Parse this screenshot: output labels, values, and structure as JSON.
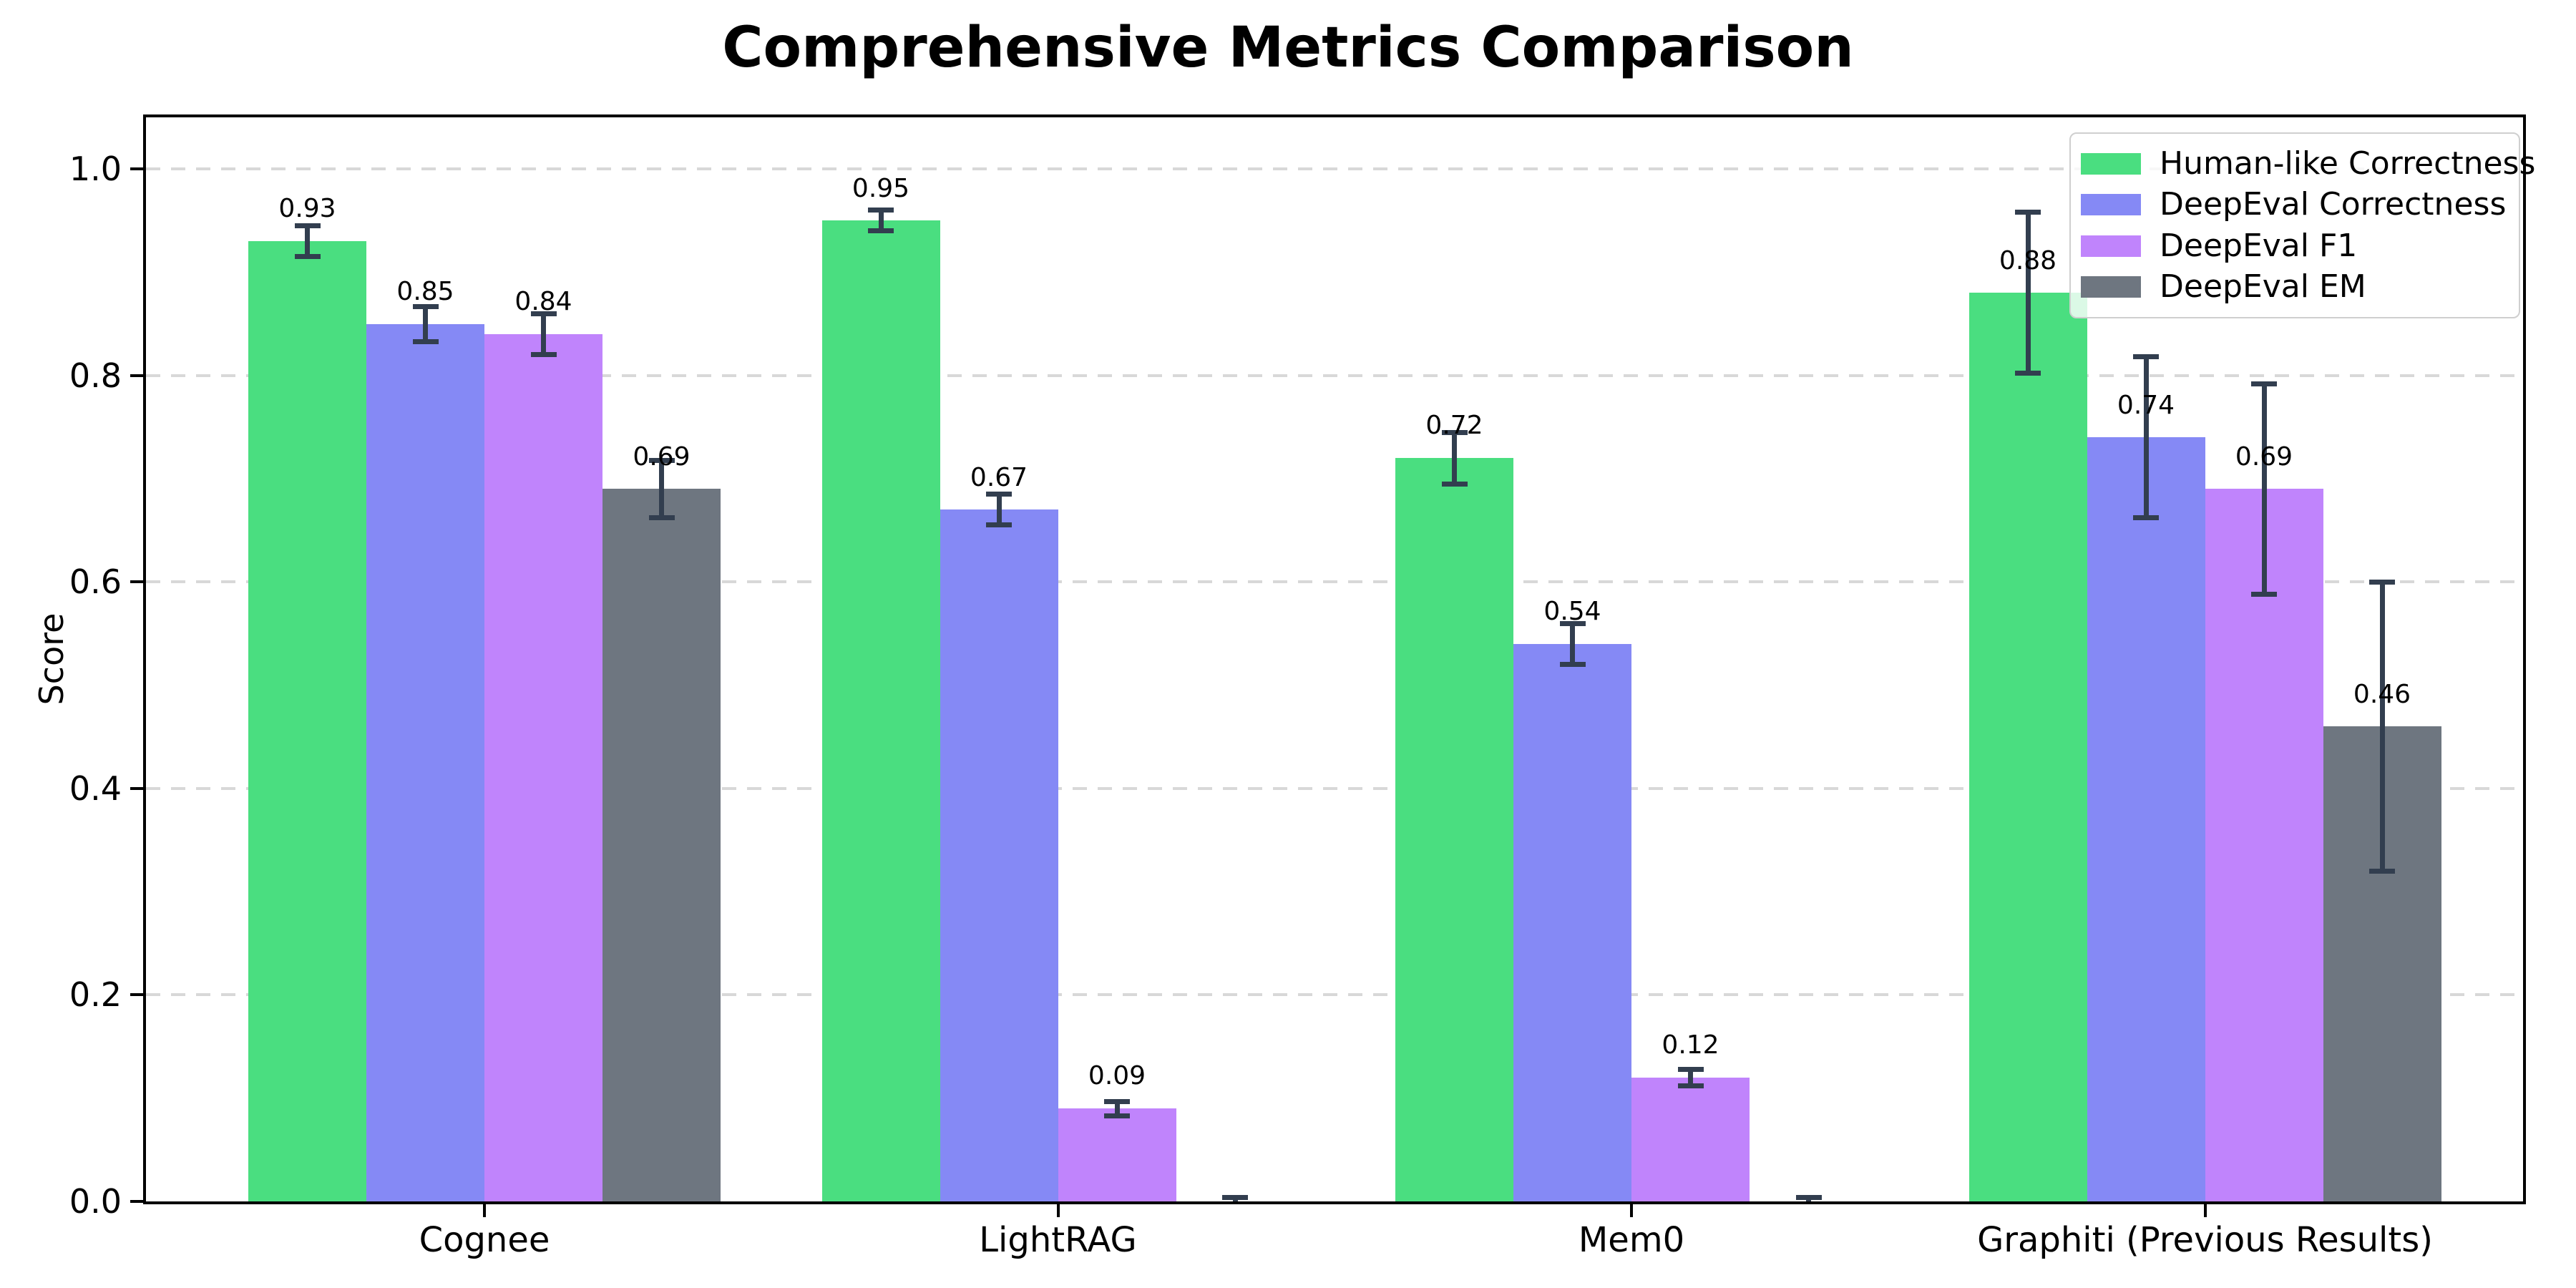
{
  "title": "Comprehensive Metrics Comparison",
  "chart_data": {
    "type": "bar",
    "title": "Comprehensive Metrics Comparison",
    "ylabel": "Score",
    "xlabel": "",
    "categories": [
      "Cognee",
      "LightRAG",
      "Mem0",
      "Graphiti (Previous Results)"
    ],
    "yticks": [
      0.0,
      0.2,
      0.4,
      0.6,
      0.8,
      1.0
    ],
    "ylim": [
      0,
      1.05
    ],
    "grid": "horizontal-dashed",
    "legend_position": "upper-right",
    "series": [
      {
        "name": "Human-like Correctness",
        "color": "#4ade80",
        "values": [
          0.93,
          0.95,
          0.72,
          0.88
        ],
        "errors": [
          0.015,
          0.01,
          0.025,
          0.078
        ],
        "labels": [
          "0.93",
          "0.95",
          "0.72",
          "0.88"
        ]
      },
      {
        "name": "DeepEval Correctness",
        "color": "#8589f5",
        "values": [
          0.85,
          0.67,
          0.54,
          0.74
        ],
        "errors": [
          0.017,
          0.015,
          0.02,
          0.078
        ],
        "labels": [
          "0.85",
          "0.67",
          "0.54",
          "0.74"
        ]
      },
      {
        "name": "DeepEval F1",
        "color": "#c084fc",
        "values": [
          0.84,
          0.09,
          0.12,
          0.69
        ],
        "errors": [
          0.02,
          0.007,
          0.008,
          0.102
        ],
        "labels": [
          "0.84",
          "0.09",
          "0.12",
          "0.69"
        ]
      },
      {
        "name": "DeepEval EM",
        "color": "#6e7680",
        "values": [
          0.69,
          0.0,
          0.0,
          0.46
        ],
        "errors": [
          0.028,
          0.004,
          0.004,
          0.14
        ],
        "labels": [
          "0.69",
          null,
          null,
          "0.46"
        ]
      }
    ],
    "error_bar_color": "#323e4f",
    "grid_color": "#d8d8d8",
    "axis_color": "#000000",
    "background_color": "#ffffff"
  }
}
